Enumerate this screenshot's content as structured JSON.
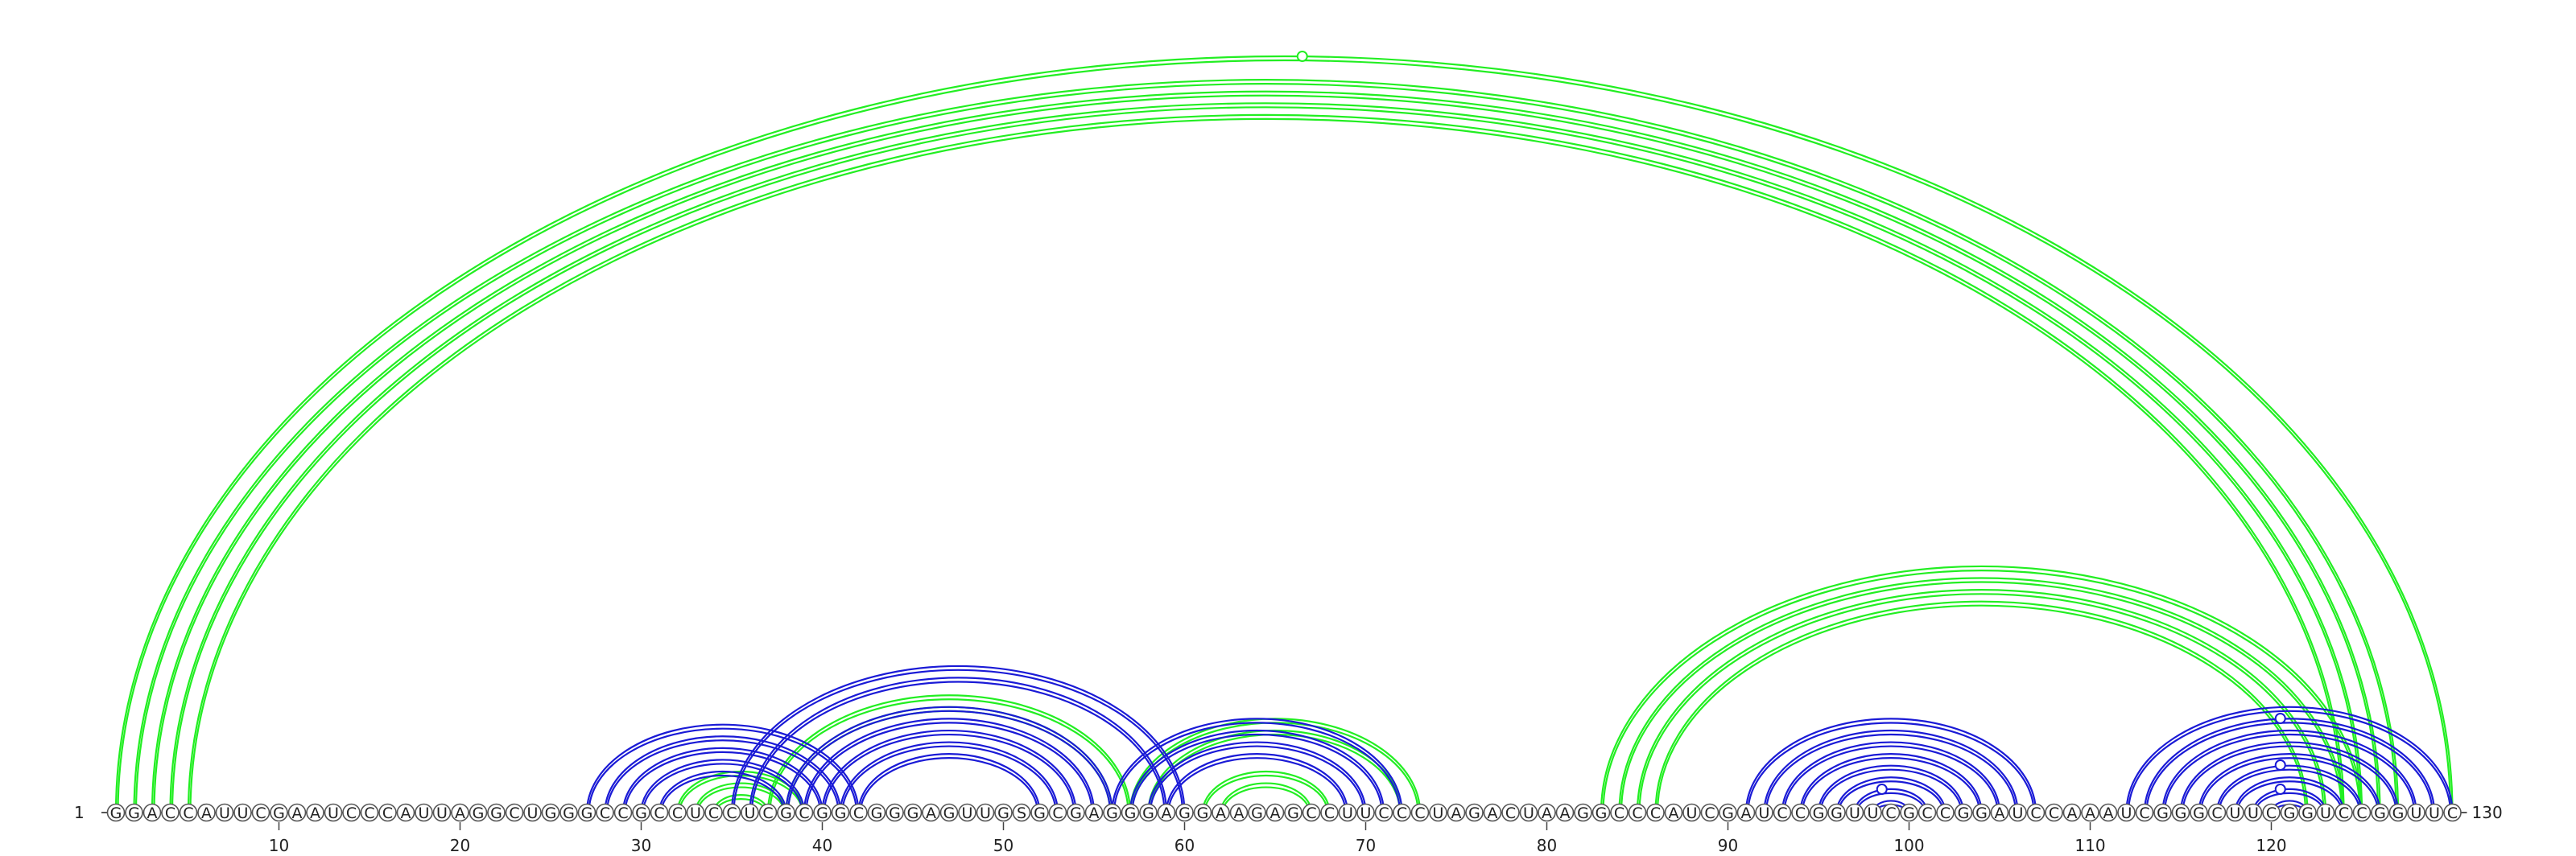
{
  "sequence": "GGACCAUUCGAAUCCCAUUAGGCUGGGCCGCCUCCUCGCGGCGGGAGUUGSGCGAGGGAGGAAGAGCCUUCCCUAGACUAAGGCCCAUCGAUCCGGUUCGCCGGAUCCAAAUCGGGCUUCGGUCCGGUUC",
  "start_label": "1",
  "end_label": "130",
  "tick_labels": [
    "10",
    "20",
    "30",
    "40",
    "50",
    "60",
    "70",
    "80",
    "90",
    "100",
    "110",
    "120"
  ],
  "colors": {
    "green": "#22ee22",
    "blue": "#1a1ad6",
    "axis": "#555555"
  },
  "arcs": {
    "green": [
      [
        1,
        130
      ],
      [
        2,
        127
      ],
      [
        3,
        126
      ],
      [
        4,
        125
      ],
      [
        5,
        124
      ],
      [
        32,
        39
      ],
      [
        33,
        38
      ],
      [
        34,
        37
      ],
      [
        37,
        57
      ],
      [
        38,
        56
      ],
      [
        57,
        73
      ],
      [
        58,
        72
      ],
      [
        61,
        68
      ],
      [
        62,
        67
      ],
      [
        83,
        125
      ],
      [
        84,
        124
      ],
      [
        85,
        123
      ],
      [
        86,
        122
      ]
    ],
    "blue": [
      [
        27,
        42
      ],
      [
        28,
        41
      ],
      [
        29,
        40
      ],
      [
        30,
        39
      ],
      [
        31,
        38
      ],
      [
        35,
        60
      ],
      [
        36,
        59
      ],
      [
        38,
        56
      ],
      [
        39,
        55
      ],
      [
        40,
        54
      ],
      [
        41,
        53
      ],
      [
        42,
        52
      ],
      [
        56,
        72
      ],
      [
        57,
        71
      ],
      [
        58,
        70
      ],
      [
        59,
        69
      ],
      [
        91,
        107
      ],
      [
        92,
        106
      ],
      [
        93,
        105
      ],
      [
        94,
        104
      ],
      [
        95,
        103
      ],
      [
        96,
        102
      ],
      [
        97,
        101
      ],
      [
        98,
        100
      ],
      [
        112,
        130
      ],
      [
        113,
        129
      ],
      [
        114,
        128
      ],
      [
        115,
        127
      ],
      [
        116,
        126
      ],
      [
        117,
        125
      ],
      [
        118,
        124
      ],
      [
        119,
        123
      ],
      [
        120,
        122
      ]
    ]
  },
  "loop_markers": [
    [
      66.5,
      "green"
    ],
    [
      98.5,
      "blue"
    ],
    [
      120.5,
      "blue"
    ],
    [
      120.5,
      "blue"
    ],
    [
      120.5,
      "blue"
    ]
  ]
}
